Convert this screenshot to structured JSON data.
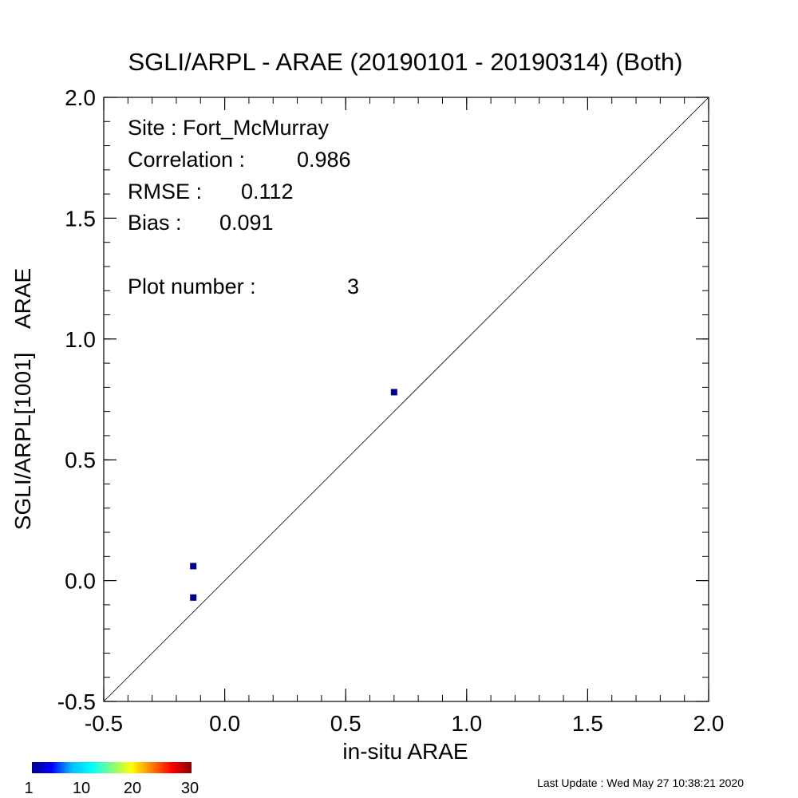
{
  "chart_data": {
    "type": "scatter",
    "title": "SGLI/ARPL - ARAE (20190101 - 20190314) (Both)",
    "xlabel": "in-situ ARAE",
    "ylabel": "SGLI/ARPL[1001]    ARAE",
    "xlim": [
      -0.5,
      2.0
    ],
    "ylim": [
      -0.5,
      2.0
    ],
    "x_ticks": [
      {
        "value": -0.5,
        "label": "-0.5"
      },
      {
        "value": 0.0,
        "label": "0.0"
      },
      {
        "value": 0.5,
        "label": "0.5"
      },
      {
        "value": 1.0,
        "label": "1.0"
      },
      {
        "value": 1.5,
        "label": "1.5"
      },
      {
        "value": 2.0,
        "label": "2.0"
      }
    ],
    "y_ticks": [
      {
        "value": -0.5,
        "label": "-0.5"
      },
      {
        "value": 0.0,
        "label": "0.0"
      },
      {
        "value": 0.5,
        "label": "0.5"
      },
      {
        "value": 1.0,
        "label": "1.0"
      },
      {
        "value": 1.5,
        "label": "1.5"
      },
      {
        "value": 2.0,
        "label": "2.0"
      }
    ],
    "points": [
      {
        "x": -0.13,
        "y": 0.06
      },
      {
        "x": -0.13,
        "y": -0.07
      },
      {
        "x": 0.7,
        "y": 0.78
      }
    ],
    "point_color": "#00008b",
    "reference_line": "1:1",
    "grid": false,
    "stats": {
      "site": "Site : Fort_McMurray",
      "correlation_label": "Correlation :",
      "correlation_value": "0.986",
      "rmse_label": "RMSE :",
      "rmse_value": "0.112",
      "bias_label": "Bias :",
      "bias_value": "0.091",
      "plot_number_label": "Plot number :",
      "plot_number_value": "3"
    },
    "colorbar": {
      "colors": [
        "#00008b",
        "#0000ff",
        "#00bfff",
        "#00ffff",
        "#7fff7f",
        "#ffff00",
        "#ff7f00",
        "#ff0000",
        "#8b0000"
      ],
      "tick_labels": [
        "1",
        "10",
        "20",
        "30"
      ]
    }
  },
  "footer": {
    "last_update": "Last Update : Wed May 27 10:38:21 2020"
  }
}
